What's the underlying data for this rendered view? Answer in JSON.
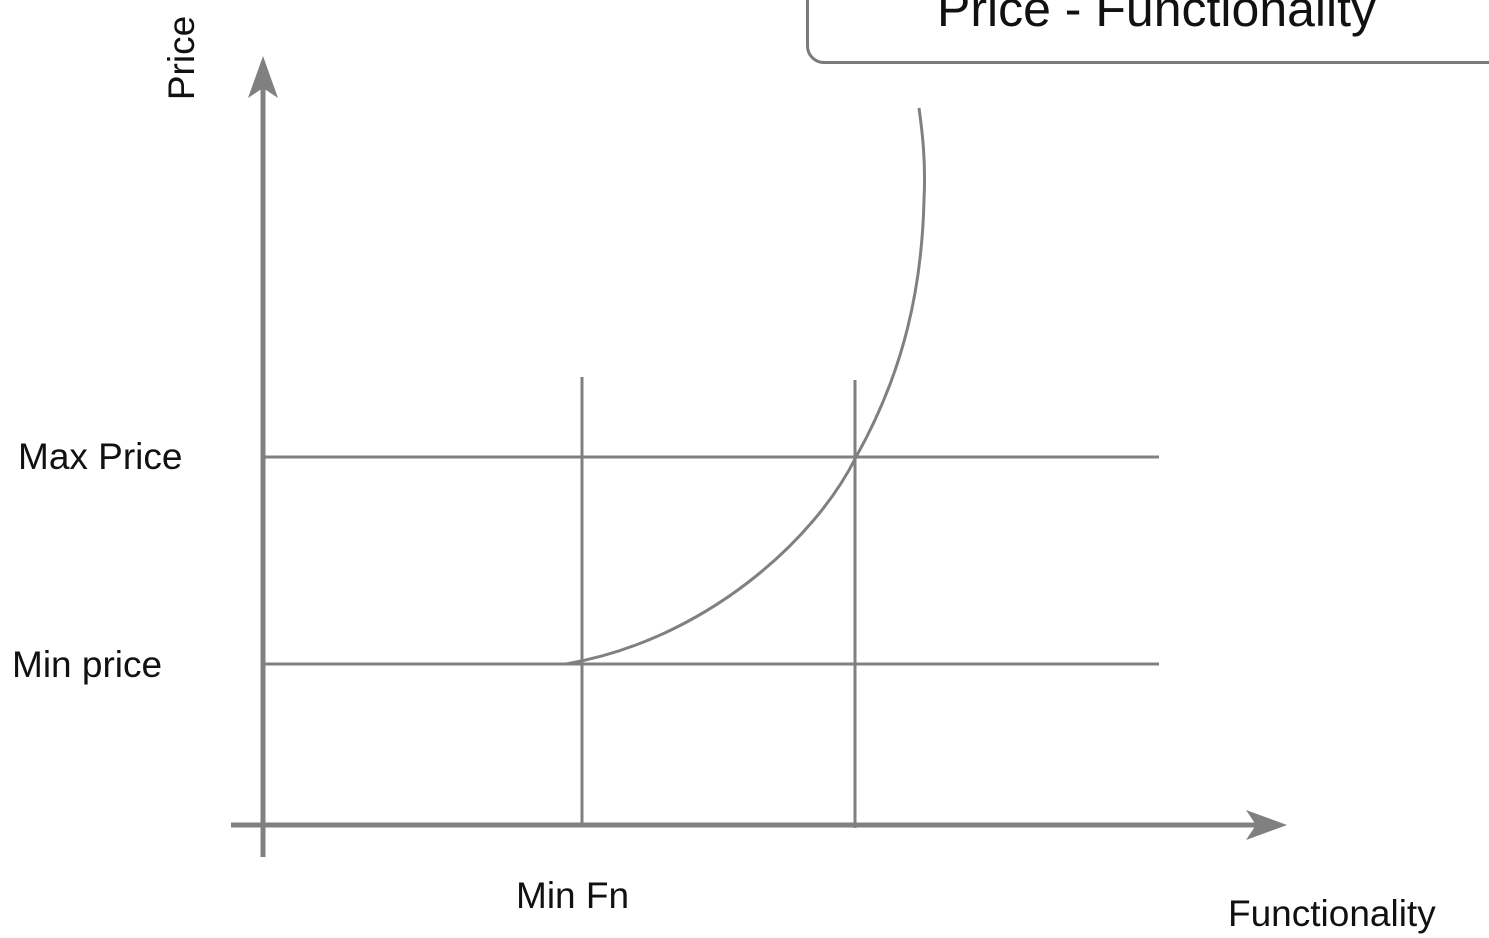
{
  "title": "Price - Functionality",
  "axes": {
    "y_label": "Price",
    "x_label": "Functionality"
  },
  "levels": {
    "max_price": "Max Price",
    "min_price": "Min price",
    "min_fn": "Min Fn"
  },
  "colors": {
    "line": "#808080",
    "text": "#111111",
    "background": "#ffffff"
  }
}
